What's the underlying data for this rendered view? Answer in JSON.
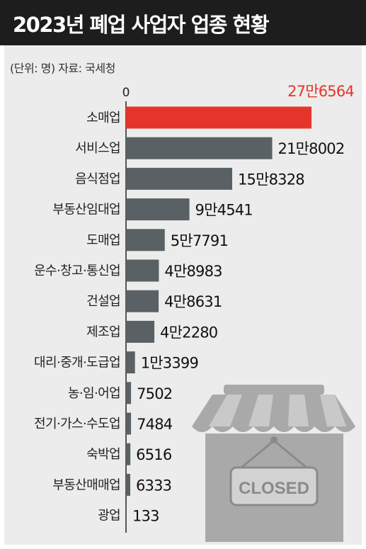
{
  "title": "2023년 폐업 사업자 업종 현황",
  "subtitle": "(단위: 명)  자료: 국세청",
  "colors": {
    "highlight": "#e5342a",
    "bar": "#5a6164",
    "panel": "#ececec",
    "title_bg": "#1d1d1d"
  },
  "icon": "closed-store-icon",
  "icon_sign_text": "CLOSED",
  "chart_data": {
    "type": "bar",
    "orientation": "horizontal",
    "x_tick": "0",
    "xlim": [
      0,
      276564
    ],
    "categories": [
      "소매업",
      "서비스업",
      "음식점업",
      "부동산임대업",
      "도매업",
      "운수·창고·통신업",
      "건설업",
      "제조업",
      "대리·중개·도급업",
      "농·임·어업",
      "전기·가스·수도업",
      "숙박업",
      "부동산매매업",
      "광업"
    ],
    "values": [
      276564,
      218002,
      158328,
      94541,
      57791,
      48983,
      48631,
      42280,
      13399,
      7502,
      7484,
      6516,
      6333,
      133
    ],
    "value_labels": [
      "27만6564",
      "21만8002",
      "15만8328",
      "9만4541",
      "5만7791",
      "4만8983",
      "4만8631",
      "4만2280",
      "1만3399",
      "7502",
      "7484",
      "6516",
      "6333",
      "133"
    ],
    "highlight_index": 0
  }
}
